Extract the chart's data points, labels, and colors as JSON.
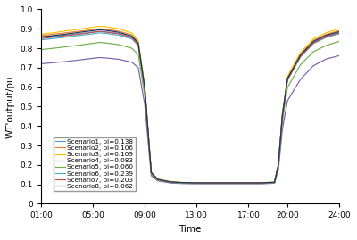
{
  "title": "",
  "xlabel": "Time",
  "ylabel": "WT'output/pu",
  "xlim": [
    1,
    24
  ],
  "ylim": [
    0,
    1.0
  ],
  "xtick_labels": [
    "01:00",
    "05:00",
    "09:00",
    "13:00",
    "17:00",
    "20:00",
    "24:00"
  ],
  "xtick_positions": [
    1,
    5,
    9,
    13,
    17,
    20,
    24
  ],
  "ytick_positions": [
    0,
    0.1,
    0.2,
    0.3,
    0.4,
    0.5,
    0.6,
    0.7,
    0.8,
    0.9,
    1.0
  ],
  "scenarios": [
    {
      "label": "Scenario1, pi=0.138",
      "color": "#5B9BD5"
    },
    {
      "label": "Scenario2, pi=0.106",
      "color": "#ED7D31"
    },
    {
      "label": "Scenario3, pi=0.109",
      "color": "#FFC000"
    },
    {
      "label": "Scenario4, pi=0.083",
      "color": "#7B5EA7"
    },
    {
      "label": "Scenario5, pi=0.060",
      "color": "#70AD47"
    },
    {
      "label": "Scenario6, pi=0.239",
      "color": "#4BACC6"
    },
    {
      "label": "Scenario7, pi=0.203",
      "color": "#C0504D"
    },
    {
      "label": "Scenario8, pi=0.062",
      "color": "#17375E"
    }
  ],
  "time_points": [
    1,
    2,
    3,
    4,
    5,
    5.5,
    6,
    7,
    8,
    8.5,
    9,
    9.5,
    10,
    11,
    12,
    13,
    14,
    15,
    16,
    17,
    18,
    19,
    19.3,
    19.6,
    20,
    21,
    22,
    23,
    24
  ],
  "scenario_data": [
    [
      0.855,
      0.862,
      0.868,
      0.875,
      0.882,
      0.887,
      0.884,
      0.876,
      0.855,
      0.82,
      0.59,
      0.16,
      0.125,
      0.112,
      0.108,
      0.107,
      0.107,
      0.107,
      0.107,
      0.107,
      0.107,
      0.11,
      0.2,
      0.45,
      0.64,
      0.76,
      0.83,
      0.862,
      0.88
    ],
    [
      0.865,
      0.872,
      0.88,
      0.888,
      0.895,
      0.9,
      0.897,
      0.888,
      0.868,
      0.832,
      0.6,
      0.162,
      0.127,
      0.113,
      0.109,
      0.108,
      0.108,
      0.108,
      0.108,
      0.108,
      0.108,
      0.111,
      0.202,
      0.455,
      0.648,
      0.77,
      0.84,
      0.872,
      0.89
    ],
    [
      0.872,
      0.88,
      0.89,
      0.898,
      0.908,
      0.913,
      0.91,
      0.9,
      0.878,
      0.84,
      0.608,
      0.164,
      0.128,
      0.114,
      0.11,
      0.109,
      0.109,
      0.109,
      0.109,
      0.109,
      0.109,
      0.112,
      0.204,
      0.46,
      0.655,
      0.778,
      0.848,
      0.88,
      0.9
    ],
    [
      0.72,
      0.726,
      0.732,
      0.74,
      0.748,
      0.752,
      0.75,
      0.743,
      0.728,
      0.7,
      0.51,
      0.145,
      0.118,
      0.107,
      0.104,
      0.103,
      0.103,
      0.103,
      0.103,
      0.103,
      0.103,
      0.106,
      0.175,
      0.38,
      0.53,
      0.64,
      0.71,
      0.745,
      0.762
    ],
    [
      0.793,
      0.8,
      0.808,
      0.816,
      0.825,
      0.83,
      0.827,
      0.818,
      0.8,
      0.768,
      0.556,
      0.152,
      0.121,
      0.11,
      0.106,
      0.105,
      0.105,
      0.105,
      0.105,
      0.105,
      0.105,
      0.108,
      0.188,
      0.42,
      0.598,
      0.715,
      0.782,
      0.815,
      0.835
    ],
    [
      0.843,
      0.85,
      0.858,
      0.866,
      0.874,
      0.879,
      0.876,
      0.867,
      0.848,
      0.813,
      0.585,
      0.158,
      0.124,
      0.111,
      0.107,
      0.106,
      0.106,
      0.106,
      0.106,
      0.106,
      0.106,
      0.109,
      0.198,
      0.445,
      0.635,
      0.755,
      0.824,
      0.856,
      0.874
    ],
    [
      0.85,
      0.857,
      0.865,
      0.873,
      0.882,
      0.886,
      0.883,
      0.874,
      0.854,
      0.818,
      0.592,
      0.16,
      0.125,
      0.112,
      0.108,
      0.107,
      0.107,
      0.107,
      0.107,
      0.107,
      0.107,
      0.11,
      0.2,
      0.448,
      0.638,
      0.758,
      0.827,
      0.86,
      0.878
    ],
    [
      0.858,
      0.865,
      0.873,
      0.882,
      0.89,
      0.895,
      0.892,
      0.882,
      0.862,
      0.826,
      0.596,
      0.161,
      0.126,
      0.113,
      0.109,
      0.108,
      0.108,
      0.108,
      0.108,
      0.108,
      0.108,
      0.111,
      0.201,
      0.452,
      0.644,
      0.765,
      0.835,
      0.867,
      0.885
    ]
  ],
  "linewidth": 0.85,
  "legend_fontsize": 5.2,
  "tick_fontsize": 6.5,
  "label_fontsize": 7.5
}
